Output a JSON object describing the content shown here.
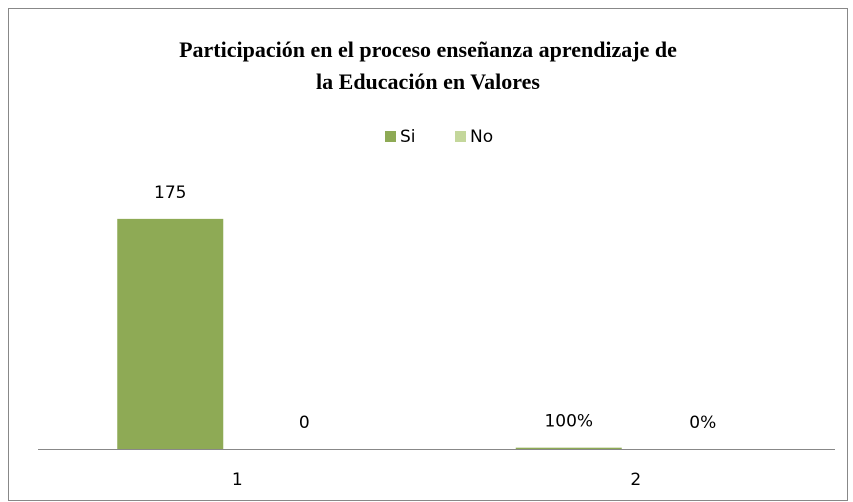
{
  "chart_data": {
    "type": "bar",
    "title": [
      "Participación en el proceso enseñanza aprendizaje de",
      "la Educación en Valores"
    ],
    "categories": [
      "1",
      "2"
    ],
    "series": [
      {
        "name": "Si",
        "color": "#8eaa55",
        "values": [
          175,
          1
        ],
        "value_labels": [
          "175",
          "100%"
        ]
      },
      {
        "name": "No",
        "color": "#c4d79b",
        "values": [
          0,
          0
        ],
        "value_labels": [
          "0",
          "0%"
        ]
      }
    ],
    "ylim": [
      0,
      200
    ],
    "legend": "top"
  }
}
